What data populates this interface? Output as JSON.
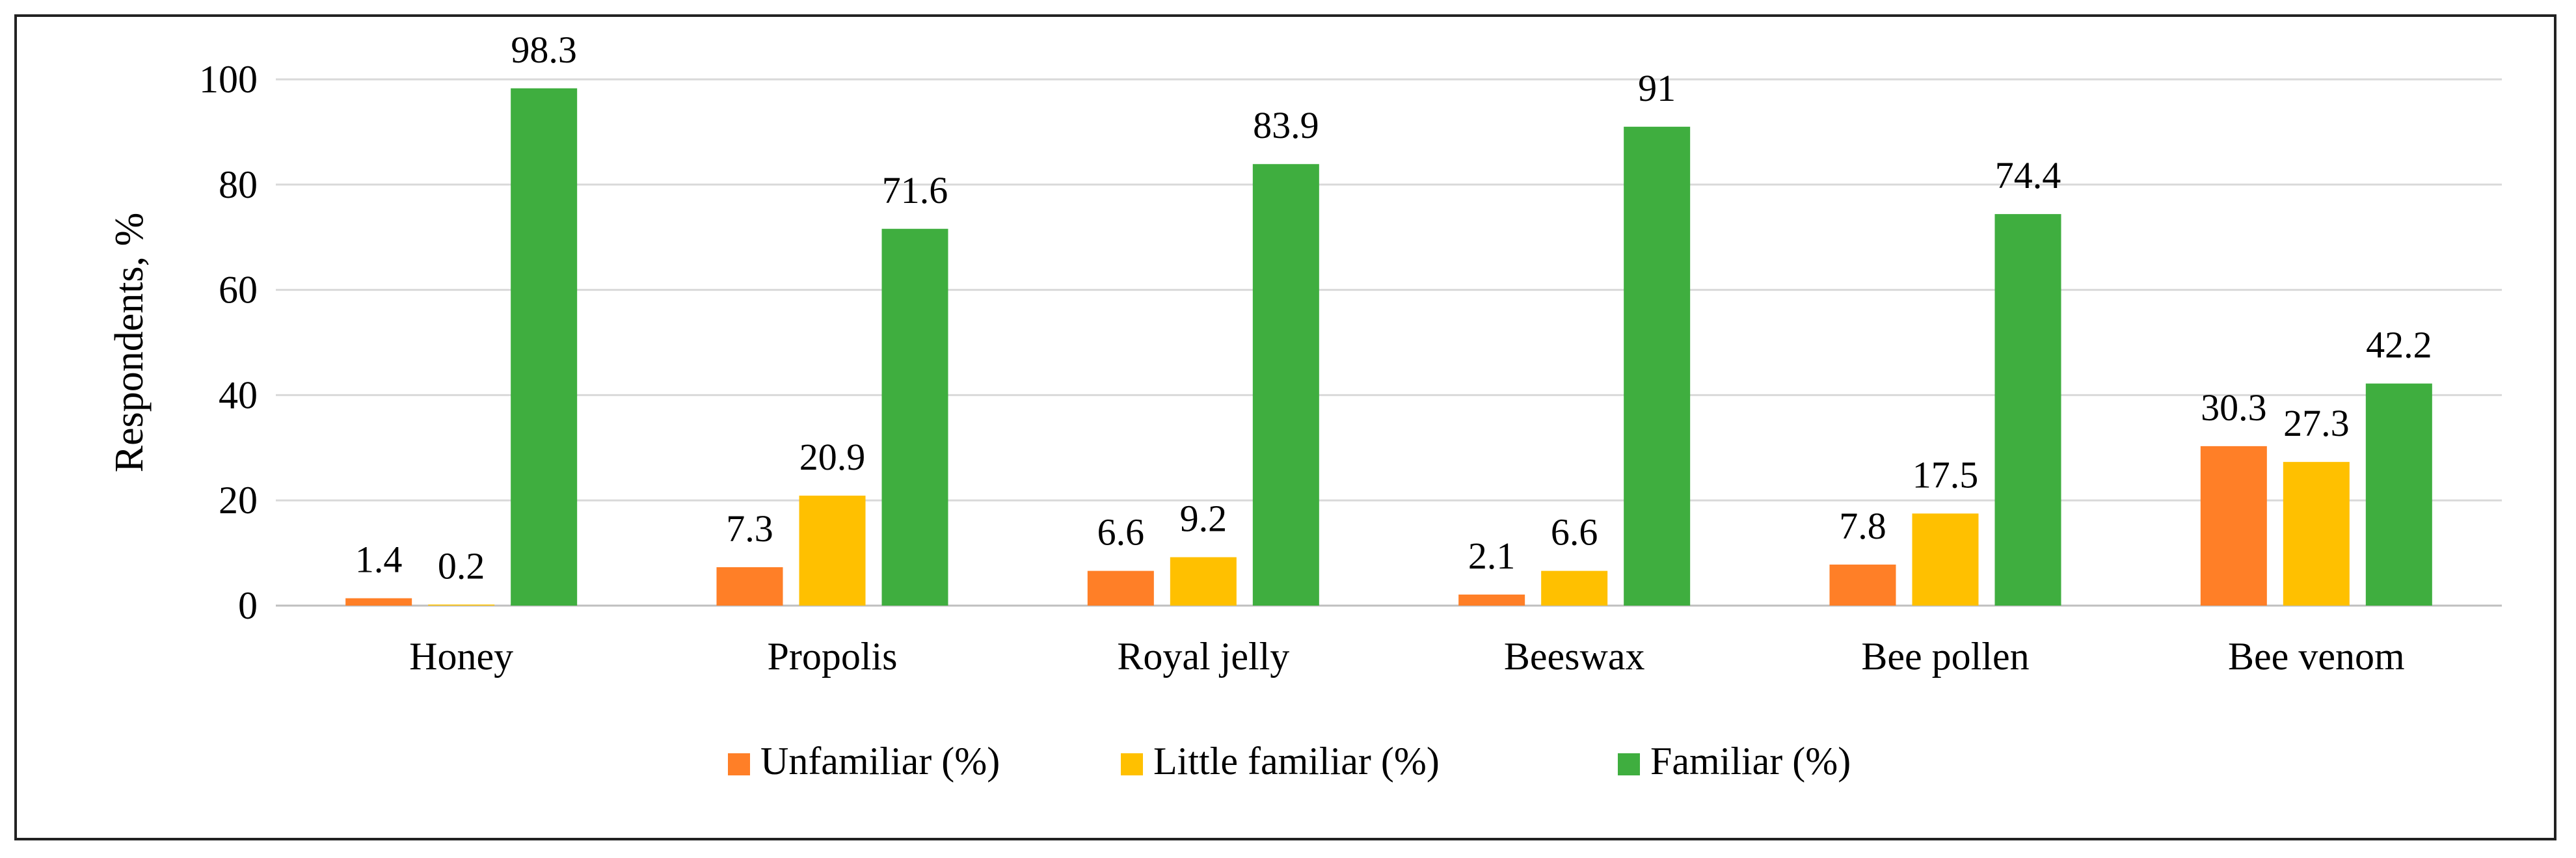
{
  "chart_data": {
    "type": "bar",
    "title": "",
    "xlabel": "",
    "ylabel": "Respondents, %",
    "ylim": [
      0,
      100
    ],
    "yticks": [
      0,
      20,
      40,
      60,
      80,
      100
    ],
    "grid": true,
    "legend_position": "bottom",
    "categories": [
      "Honey",
      "Propolis",
      "Royal jelly",
      "Beeswax",
      "Bee pollen",
      "Bee venom"
    ],
    "series": [
      {
        "name": "Unfamiliar (%)",
        "color": "#FF7F27",
        "values": [
          1.4,
          7.3,
          6.6,
          2.1,
          7.8,
          30.3
        ]
      },
      {
        "name": "Little familiar (%)",
        "color": "#FFC000",
        "values": [
          0.2,
          20.9,
          9.2,
          6.6,
          17.5,
          27.3
        ]
      },
      {
        "name": "Familiar (%)",
        "color": "#3FAE3F",
        "values": [
          98.3,
          71.6,
          83.9,
          91,
          74.4,
          42.2
        ]
      }
    ],
    "data_labels": [
      [
        "1.4",
        "7.3",
        "6.6",
        "2.1",
        "7.8",
        "30.3"
      ],
      [
        "0.2",
        "20.9",
        "9.2",
        "6.6",
        "17.5",
        "27.3"
      ],
      [
        "98.3",
        "71.6",
        "83.9",
        "91",
        "74.4",
        "42.2"
      ]
    ]
  }
}
